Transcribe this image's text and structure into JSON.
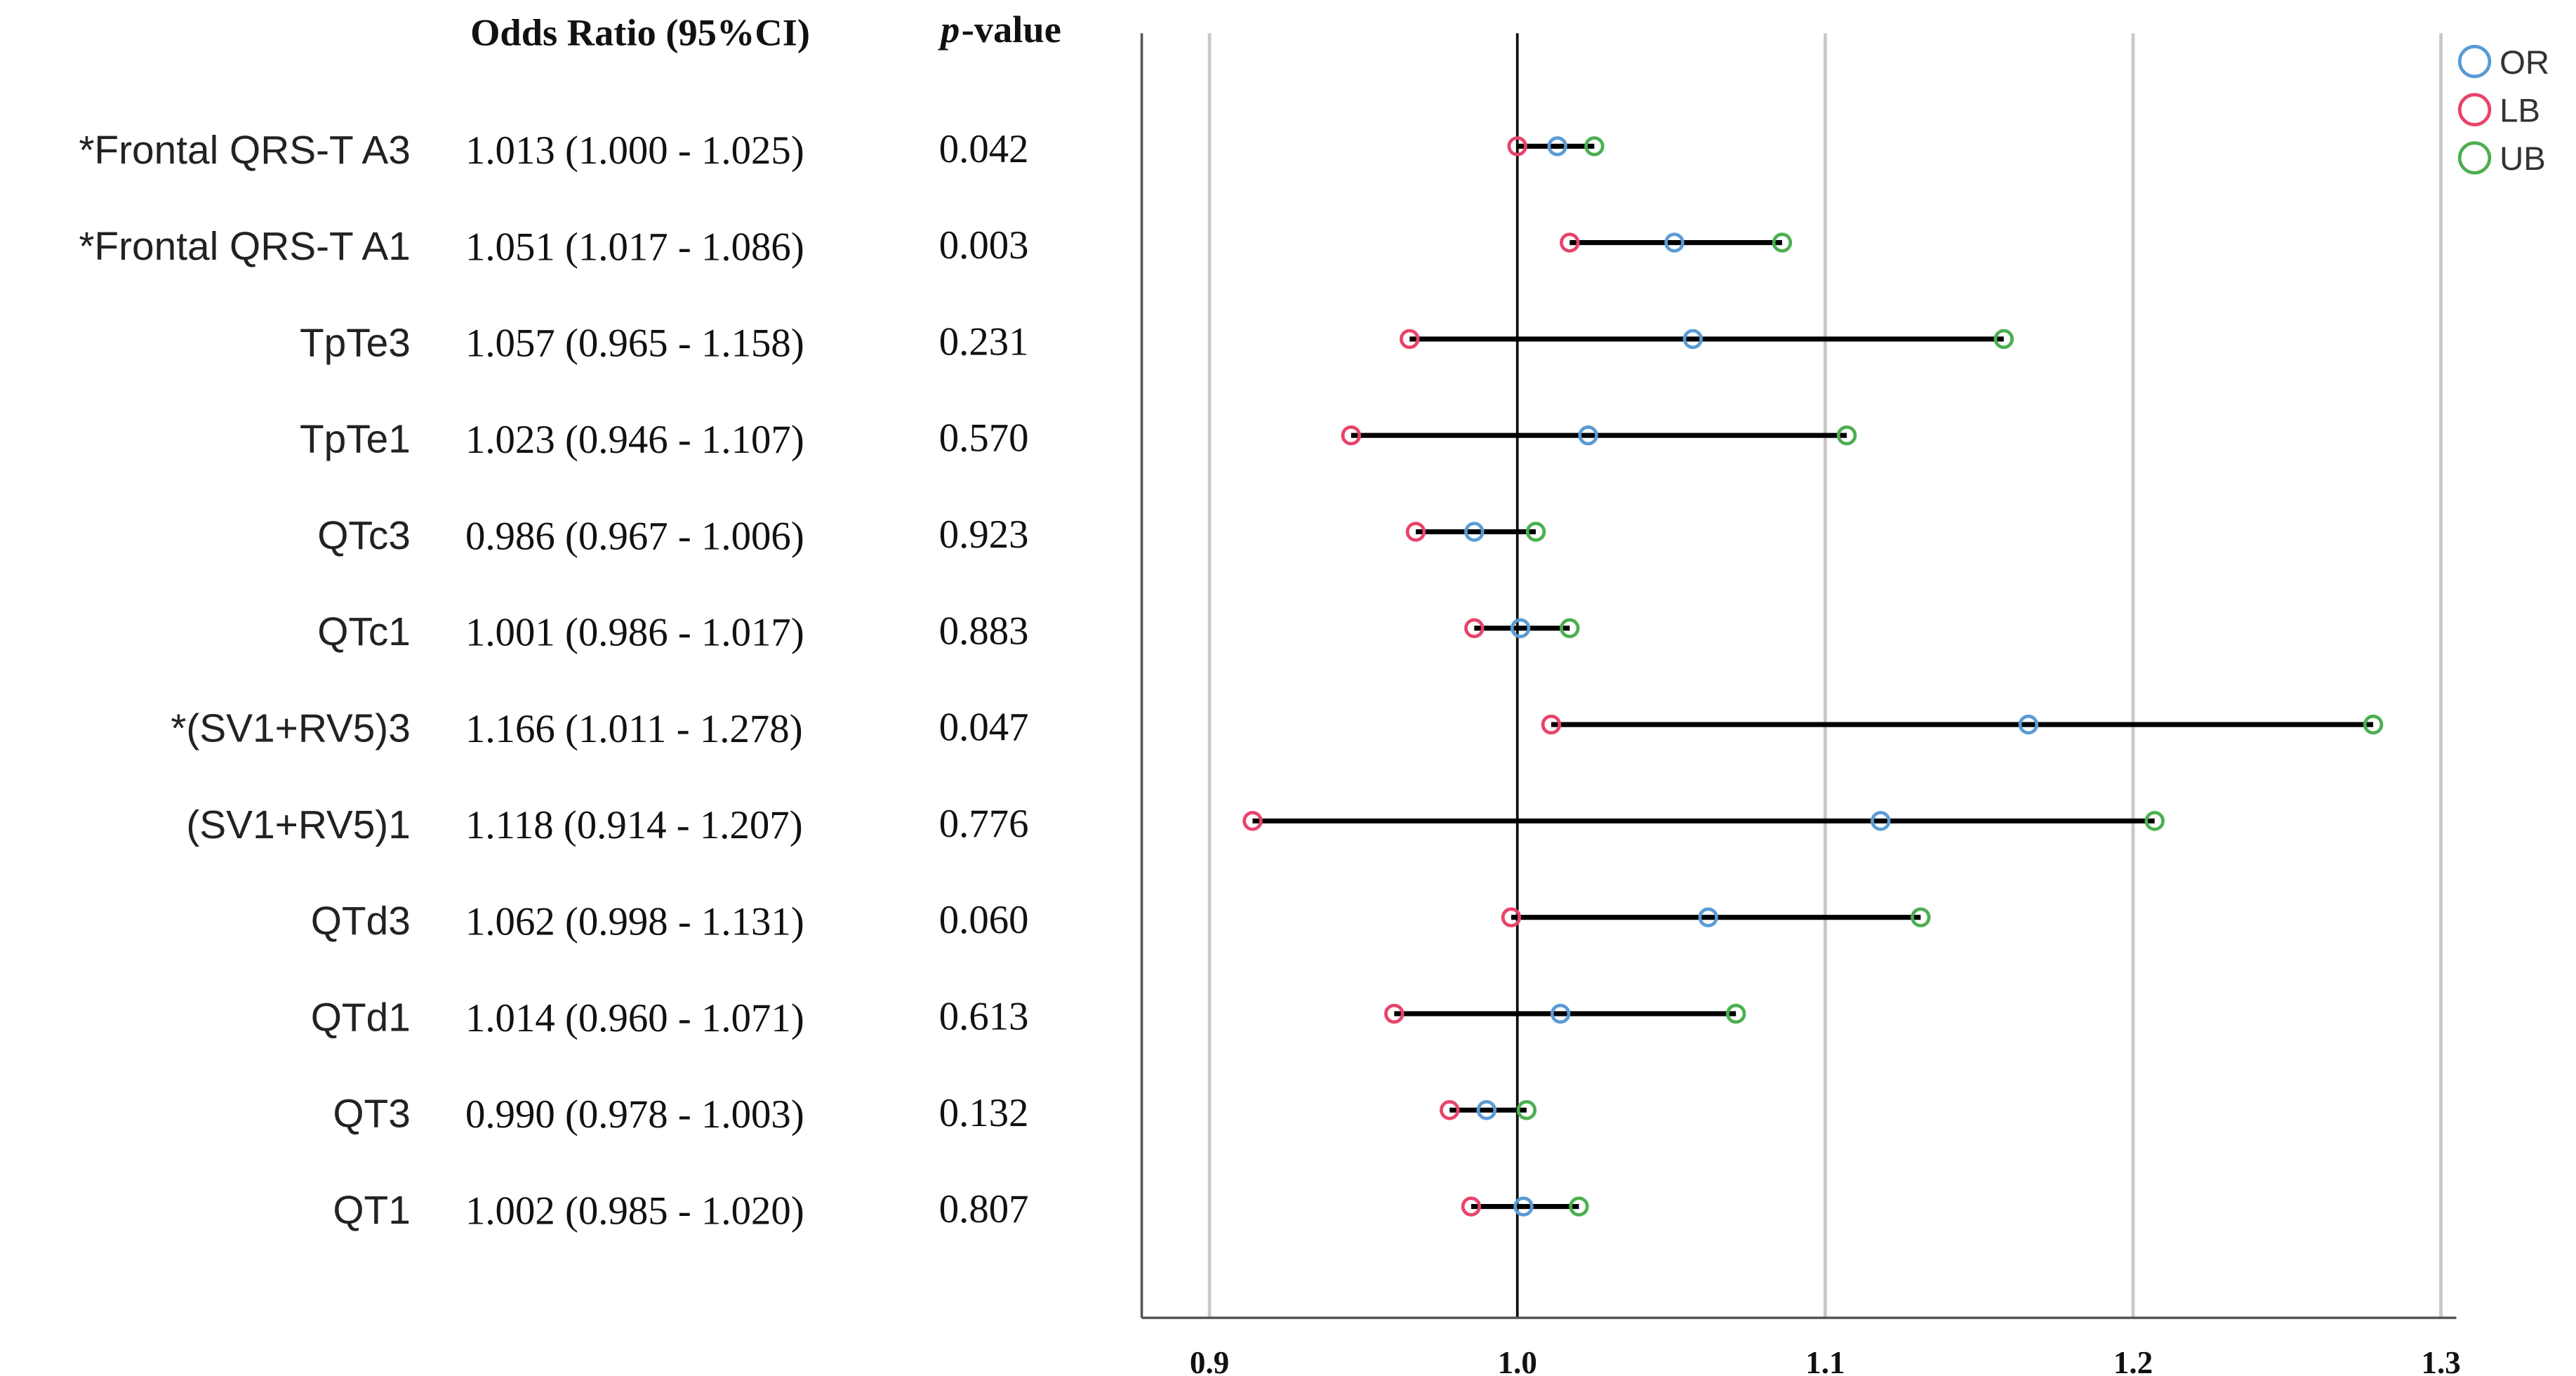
{
  "chart_data": {
    "type": "forest",
    "ci_header": "Odds Ratio (95%CI)",
    "p_header": {
      "italic": "p",
      "rest": "-value"
    },
    "categories": [
      "*Frontal QRS-T A3",
      "*Frontal QRS-T A1",
      "TpTe3",
      "TpTe1",
      "QTc3",
      "QTc1",
      "*(SV1+RV5)3",
      "(SV1+RV5)1",
      "QTd3",
      "QTd1",
      "QT3",
      "QT1"
    ],
    "ci_labels": [
      "1.013 (1.000 - 1.025)",
      "1.051 (1.017 - 1.086)",
      "1.057 (0.965 - 1.158)",
      "1.023 (0.946 - 1.107)",
      "0.986 (0.967 - 1.006)",
      "1.001 (0.986 - 1.017)",
      "1.166 (1.011 - 1.278)",
      "1.118 (0.914 - 1.207)",
      "1.062 (0.998 - 1.131)",
      "1.014 (0.960 - 1.071)",
      "0.990 (0.978 - 1.003)",
      "1.002 (0.985 - 1.020)"
    ],
    "p_values": [
      "0.042",
      "0.003",
      "0.231",
      "0.570",
      "0.923",
      "0.883",
      "0.047",
      "0.776",
      "0.060",
      "0.613",
      "0.132",
      "0.807"
    ],
    "series": [
      {
        "name": "OR",
        "color": "#5b9bd5",
        "values": [
          1.013,
          1.051,
          1.057,
          1.023,
          0.986,
          1.001,
          1.166,
          1.118,
          1.062,
          1.014,
          0.99,
          1.002
        ]
      },
      {
        "name": "LB",
        "color": "#e8436b",
        "values": [
          1.0,
          1.017,
          0.965,
          0.946,
          0.967,
          0.986,
          1.011,
          0.914,
          0.998,
          0.96,
          0.978,
          0.985
        ]
      },
      {
        "name": "UB",
        "color": "#4caf50",
        "values": [
          1.025,
          1.086,
          1.158,
          1.107,
          1.006,
          1.017,
          1.278,
          1.207,
          1.131,
          1.071,
          1.003,
          1.02
        ]
      }
    ],
    "xlim": [
      0.878,
      1.305
    ],
    "xticks": [
      0.9,
      {
        "value": 1,
        "label": "1.0"
      },
      1.1,
      1.2,
      1.3
    ],
    "grid": true,
    "reference_line": 1,
    "legend": "top-right"
  }
}
